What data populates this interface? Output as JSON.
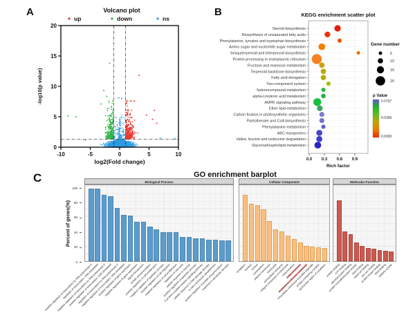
{
  "figure": {
    "panel_a_label": "A",
    "panel_b_label": "B",
    "panel_c_label": "C"
  },
  "chart_data": [
    {
      "id": "volcano",
      "type": "scatter",
      "title": "Volcano plot",
      "xlabel": "log2(Fold change)",
      "ylabel": "-log10(p value)",
      "xlim": [
        -10,
        10
      ],
      "ylim": [
        0,
        20
      ],
      "xticks": [
        -10,
        -5,
        0,
        5,
        10
      ],
      "yticks": [
        0,
        5,
        10,
        15,
        20
      ],
      "legend": [
        {
          "label": "up",
          "color": "#e8392f"
        },
        {
          "label": "down",
          "color": "#33b44a"
        },
        {
          "label": "ns",
          "color": "#2e9bdf"
        }
      ],
      "threshold_lines": {
        "vlines": [
          -1,
          1
        ],
        "hline": 1.3,
        "style": "dash-dot",
        "color": "#222222"
      },
      "clusters": [
        {
          "name": "ns-fan",
          "color": "#2e9bdf",
          "count": 1500,
          "x_sigma": 1.9,
          "x_clip": 4.3,
          "y_base": 1.35,
          "y_slope": 0.24
        },
        {
          "name": "ns-spike",
          "color": "#2e9bdf",
          "count": 450,
          "x_max": 1.0,
          "y_max": 8.1
        },
        {
          "name": "down",
          "color": "#33b44a",
          "count": 270,
          "x_start": -1.05,
          "x_spread": 1.05,
          "x_clip": -5.3,
          "y_min": 1.35,
          "y_spread": 1.5,
          "y_max": 7.6
        },
        {
          "name": "up",
          "color": "#e8392f",
          "count": 270,
          "x_start": 1.05,
          "x_spread": 1.15,
          "x_clip": 6.4,
          "y_min": 1.35,
          "y_spread": 1.5,
          "y_max": 7.6
        }
      ],
      "outliers": [
        {
          "color": "#33b44a",
          "points": [
            [
              -8.8,
              5.15
            ],
            [
              -7.4,
              5.0
            ],
            [
              -1.7,
              13.8
            ],
            [
              -2.7,
              9.3
            ],
            [
              -2.2,
              8.35
            ],
            [
              -3.2,
              7.1
            ]
          ]
        },
        {
          "color": "#e8392f",
          "points": [
            [
              3.3,
              11.8
            ],
            [
              5.9,
              6.05
            ],
            [
              6.3,
              3.95
            ],
            [
              5.6,
              4.6
            ],
            [
              4.6,
              5.3
            ]
          ]
        },
        {
          "color": "#2e9bdf",
          "points": [
            [
              6.9,
              1.45
            ],
            [
              9.4,
              1.4
            ],
            [
              0.35,
              8.0
            ],
            [
              -5.8,
              1.15
            ]
          ]
        }
      ]
    },
    {
      "id": "kegg",
      "type": "scatter",
      "title": "KEGG enrichment scatter plot",
      "xlabel": "Rich factor",
      "xticks": [
        "0.0",
        "0.3",
        "0.6",
        "0.9"
      ],
      "size_legend": {
        "title": "Gene number",
        "values": [
          5,
          10,
          15,
          20
        ]
      },
      "color_legend": {
        "title": "p Value",
        "tick_labels": [
          "0.0797",
          "0.0399",
          "0.0000"
        ],
        "gradient": [
          "#6552d2",
          "#22b42a",
          "#62bd1e",
          "#c2a300",
          "#ee7b00",
          "#ee2400"
        ]
      },
      "pathways": [
        {
          "label": "Steroid biosynthesis",
          "rich_factor": 0.56,
          "gene_number": 12,
          "color": "#e91c0c"
        },
        {
          "label": "Biosynthesis of unsaturated fatty acids",
          "rich_factor": 0.36,
          "gene_number": 10,
          "color": "#ee3300"
        },
        {
          "label": "Phenylalanine, tyrosine and tryptophan biosynthesis",
          "rich_factor": 0.6,
          "gene_number": 6,
          "color": "#f25100"
        },
        {
          "label": "Amino sugar and nucleotide sugar metabolism",
          "rich_factor": 0.25,
          "gene_number": 13,
          "color": "#f57f00"
        },
        {
          "label": "Sesquiterpenoid and triterpenoid biosynthesis",
          "rich_factor": 0.97,
          "gene_number": 4,
          "color": "#f07000"
        },
        {
          "label": "Protein processing in endoplasmic reticulum",
          "rich_factor": 0.15,
          "gene_number": 22,
          "color": "#f58220"
        },
        {
          "label": "Fructose and mannose metabolism",
          "rich_factor": 0.25,
          "gene_number": 9,
          "color": "#cfa100"
        },
        {
          "label": "Terpenoid backbone biosynthesis",
          "rich_factor": 0.28,
          "gene_number": 9,
          "color": "#bcaa00"
        },
        {
          "label": "Fatty acid elongation",
          "rich_factor": 0.28,
          "gene_number": 9,
          "color": "#b3ad00"
        },
        {
          "label": "Two-component system",
          "rich_factor": 0.38,
          "gene_number": 6,
          "color": "#9fc400"
        },
        {
          "label": "Selenocompound metabolism",
          "rich_factor": 0.28,
          "gene_number": 6,
          "color": "#2fb832"
        },
        {
          "label": "alpha-Linolenic acid metabolism",
          "rich_factor": 0.28,
          "gene_number": 7,
          "color": "#27b34a"
        },
        {
          "label": "AMPK signaling pathway",
          "rich_factor": 0.16,
          "gene_number": 16,
          "color": "#17c03c"
        },
        {
          "label": "Ether lipid metabolism",
          "rich_factor": 0.21,
          "gene_number": 10,
          "color": "#3aa65e"
        },
        {
          "label": "Carbon fixation in photosynthetic organisms",
          "rich_factor": 0.25,
          "gene_number": 8,
          "color": "#7b7ccb"
        },
        {
          "label": "Pantothenate and CoA biosynthesis",
          "rich_factor": 0.25,
          "gene_number": 8,
          "color": "#7473cd"
        },
        {
          "label": "Phenylalanine metabolism",
          "rich_factor": 0.28,
          "gene_number": 6,
          "color": "#6b5fca"
        },
        {
          "label": "ABC transporters",
          "rich_factor": 0.2,
          "gene_number": 11,
          "color": "#4743cd"
        },
        {
          "label": "Valine, leucine and isoleucine degradation",
          "rich_factor": 0.2,
          "gene_number": 11,
          "color": "#3d3bcd"
        },
        {
          "label": "Glycerophospholipid metabolism",
          "rich_factor": 0.17,
          "gene_number": 13,
          "color": "#2a23c8"
        }
      ]
    },
    {
      "id": "go",
      "type": "bar",
      "title": "GO enrichment barplot",
      "ylabel": "Percent of genes(%)",
      "yticks": [
        0,
        20,
        40,
        60,
        80,
        100
      ],
      "ylim": [
        0,
        100
      ],
      "facets": [
        {
          "label": "Biological Process",
          "color": "#5b9ccc",
          "border": "#4a86b4",
          "bars": [
            {
              "term": "positive regulation of transcription by RNA polymerase II",
              "value": 98
            },
            {
              "term": "regulation of transcription, DNA-templated",
              "value": 98
            },
            {
              "term": "negative regulation of transcription by RNA polymerase II",
              "value": 90
            },
            {
              "term": "positive regulation of transcription, DNA-templated",
              "value": 88
            },
            {
              "term": "regulation of transcription by RNA polymerase II",
              "value": 72
            },
            {
              "term": "negative regulation of transcription, DNA-templated",
              "value": 63
            },
            {
              "term": "positive regulation of gene expression",
              "value": 62
            },
            {
              "term": "negative regulation of gene expression",
              "value": 53
            },
            {
              "term": "signal transduction",
              "value": 53
            },
            {
              "term": "protein phosphorylation",
              "value": 47
            },
            {
              "term": "positive regulation of cell proliferation",
              "value": 43
            },
            {
              "term": "negative regulation of apoptotic process",
              "value": 39
            },
            {
              "term": "positive regulation of cell migration",
              "value": 39
            },
            {
              "term": "negative regulation of cell proliferation",
              "value": 39
            },
            {
              "term": "regulation of cell cycle",
              "value": 33
            },
            {
              "term": "cellular response to hypoxia",
              "value": 33
            },
            {
              "term": "positive regulation of apoptotic process",
              "value": 31
            },
            {
              "term": "G protein-coupled receptor signaling pathway",
              "value": 31
            },
            {
              "term": "cellular response to DNA damage stimulus",
              "value": 29
            },
            {
              "term": "in utero embryonic development",
              "value": 29
            },
            {
              "term": "positive regulation of protein phosphorylation",
              "value": 28
            },
            {
              "term": "response to xenobiotic stimulus",
              "value": 28
            }
          ]
        },
        {
          "label": "Cellular Component",
          "color": "#fabf7f",
          "border": "#e0a058",
          "bars": [
            {
              "term": "cytoplasm",
              "value": 90
            },
            {
              "term": "nucleus",
              "value": 78
            },
            {
              "term": "cytosol",
              "value": 76
            },
            {
              "term": "nucleoplasm",
              "value": 70
            },
            {
              "term": "plasma membrane",
              "value": 54
            },
            {
              "term": "membrane",
              "value": 43
            },
            {
              "term": "extracellular exosome",
              "value": 40
            },
            {
              "term": "integral component of membrane",
              "value": 35
            },
            {
              "term": "mitochondrion",
              "value": 30
            },
            {
              "term": "Golgi membrane",
              "value": 25,
              "struck": true
            },
            {
              "term": "endoplasmic reticulum membrane",
              "value": 21,
              "struck": true
            },
            {
              "term": "intracellular membrane-bounded organelle",
              "value": 20
            },
            {
              "term": "protein-containing complex",
              "value": 19
            },
            {
              "term": "perinuclear region of cytoplasm",
              "value": 18
            }
          ]
        },
        {
          "label": "Molecular Function",
          "color": "#cc5a50",
          "border": "#a8453c",
          "bars": [
            {
              "term": "protein binding",
              "value": 82
            },
            {
              "term": "ATP binding",
              "value": 40
            },
            {
              "term": "identical protein binding",
              "value": 36
            },
            {
              "term": "protein homodimerization activity",
              "value": 25
            },
            {
              "term": "DNA binding",
              "value": 21
            },
            {
              "term": "metal ion binding",
              "value": 18
            },
            {
              "term": "zinc ion binding",
              "value": 17
            },
            {
              "term": "protein kinase binding",
              "value": 15
            },
            {
              "term": "RNA binding",
              "value": 14
            },
            {
              "term": "catalytic activity",
              "value": 13
            }
          ]
        }
      ]
    }
  ]
}
